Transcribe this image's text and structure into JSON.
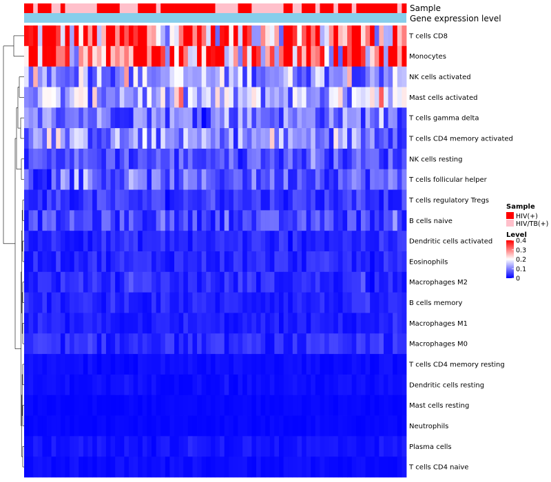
{
  "chart_data": {
    "type": "heatmap",
    "title": "",
    "annotation_tracks": [
      "Sample",
      "Gene expression level"
    ],
    "rows": [
      "T cells CD8",
      "Monocytes",
      "NK cells activated",
      "Mast cells activated",
      "T cells gamma delta",
      "T cells CD4 memory activated",
      "NK cells resting",
      "T cells follicular helper",
      "T cells regulatory  Tregs",
      "B cells naive",
      "Dendritic cells activated",
      "Eosinophils",
      "Macrophages M2",
      "B cells memory",
      "Macrophages M1",
      "Macrophages M0",
      "T cells CD4 memory resting",
      "Dendritic cells resting",
      "Mast cells resting",
      "Neutrophils",
      "Plasma cells",
      "T cells CD4 naive"
    ],
    "row_means": [
      0.3,
      0.28,
      0.12,
      0.13,
      0.09,
      0.1,
      0.06,
      0.07,
      0.04,
      0.05,
      0.03,
      0.03,
      0.03,
      0.025,
      0.02,
      0.03,
      0.01,
      0.01,
      0.005,
      0.005,
      0.015,
      0.01
    ],
    "sample_groups": [
      "HIV(+)",
      "HIV(+)",
      "HIV/TB(+)",
      "HIV(+)",
      "HIV(+)",
      "HIV(+)",
      "HIV/TB(+)",
      "HIV/TB(+)",
      "HIV(+)",
      "HIV/TB(+)",
      "HIV/TB(+)",
      "HIV/TB(+)",
      "HIV/TB(+)",
      "HIV/TB(+)",
      "HIV/TB(+)",
      "HIV/TB(+)",
      "HIV(+)",
      "HIV(+)",
      "HIV(+)",
      "HIV(+)",
      "HIV(+)",
      "HIV/TB(+)",
      "HIV/TB(+)",
      "HIV/TB(+)",
      "HIV/TB(+)",
      "HIV(+)",
      "HIV(+)",
      "HIV(+)",
      "HIV(+)",
      "HIV/TB(+)",
      "HIV(+)",
      "HIV(+)",
      "HIV(+)",
      "HIV(+)",
      "HIV(+)",
      "HIV(+)",
      "HIV(+)",
      "HIV(+)",
      "HIV(+)",
      "HIV(+)",
      "HIV(+)",
      "HIV(+)",
      "HIV/TB(+)",
      "HIV/TB(+)",
      "HIV/TB(+)",
      "HIV/TB(+)",
      "HIV/TB(+)",
      "HIV(+)",
      "HIV(+)",
      "HIV(+)",
      "HIV/TB(+)",
      "HIV/TB(+)",
      "HIV/TB(+)",
      "HIV/TB(+)",
      "HIV/TB(+)",
      "HIV/TB(+)",
      "HIV/TB(+)",
      "HIV(+)",
      "HIV(+)",
      "HIV/TB(+)",
      "HIV/TB(+)",
      "HIV(+)",
      "HIV(+)",
      "HIV(+)",
      "HIV/TB(+)",
      "HIV(+)",
      "HIV(+)",
      "HIV(+)",
      "HIV/TB(+)",
      "HIV(+)",
      "HIV(+)",
      "HIV(+)",
      "HIV/TB(+)",
      "HIV(+)",
      "HIV(+)",
      "HIV(+)",
      "HIV(+)",
      "HIV(+)",
      "HIV(+)",
      "HIV(+)",
      "HIV(+)",
      "HIV(+)",
      "HIV/TB(+)",
      "HIV(+)"
    ],
    "n_samples": 84,
    "legend": {
      "sample_title": "Sample",
      "sample_entries": [
        {
          "label": "HIV(+)",
          "color": "#ff0000"
        },
        {
          "label": "HIV/TB(+)",
          "color": "#ffc0cb"
        }
      ],
      "level_title": "Level",
      "level_ticks": [
        "0.4",
        "0.3",
        "0.2",
        "0.1",
        "0"
      ],
      "level_range": [
        0,
        0.4
      ],
      "placement": "right"
    },
    "colors": {
      "low": "#0000ff",
      "mid": "#ffffff",
      "high": "#ff0000",
      "expression_bar": "#87ceeb"
    }
  }
}
